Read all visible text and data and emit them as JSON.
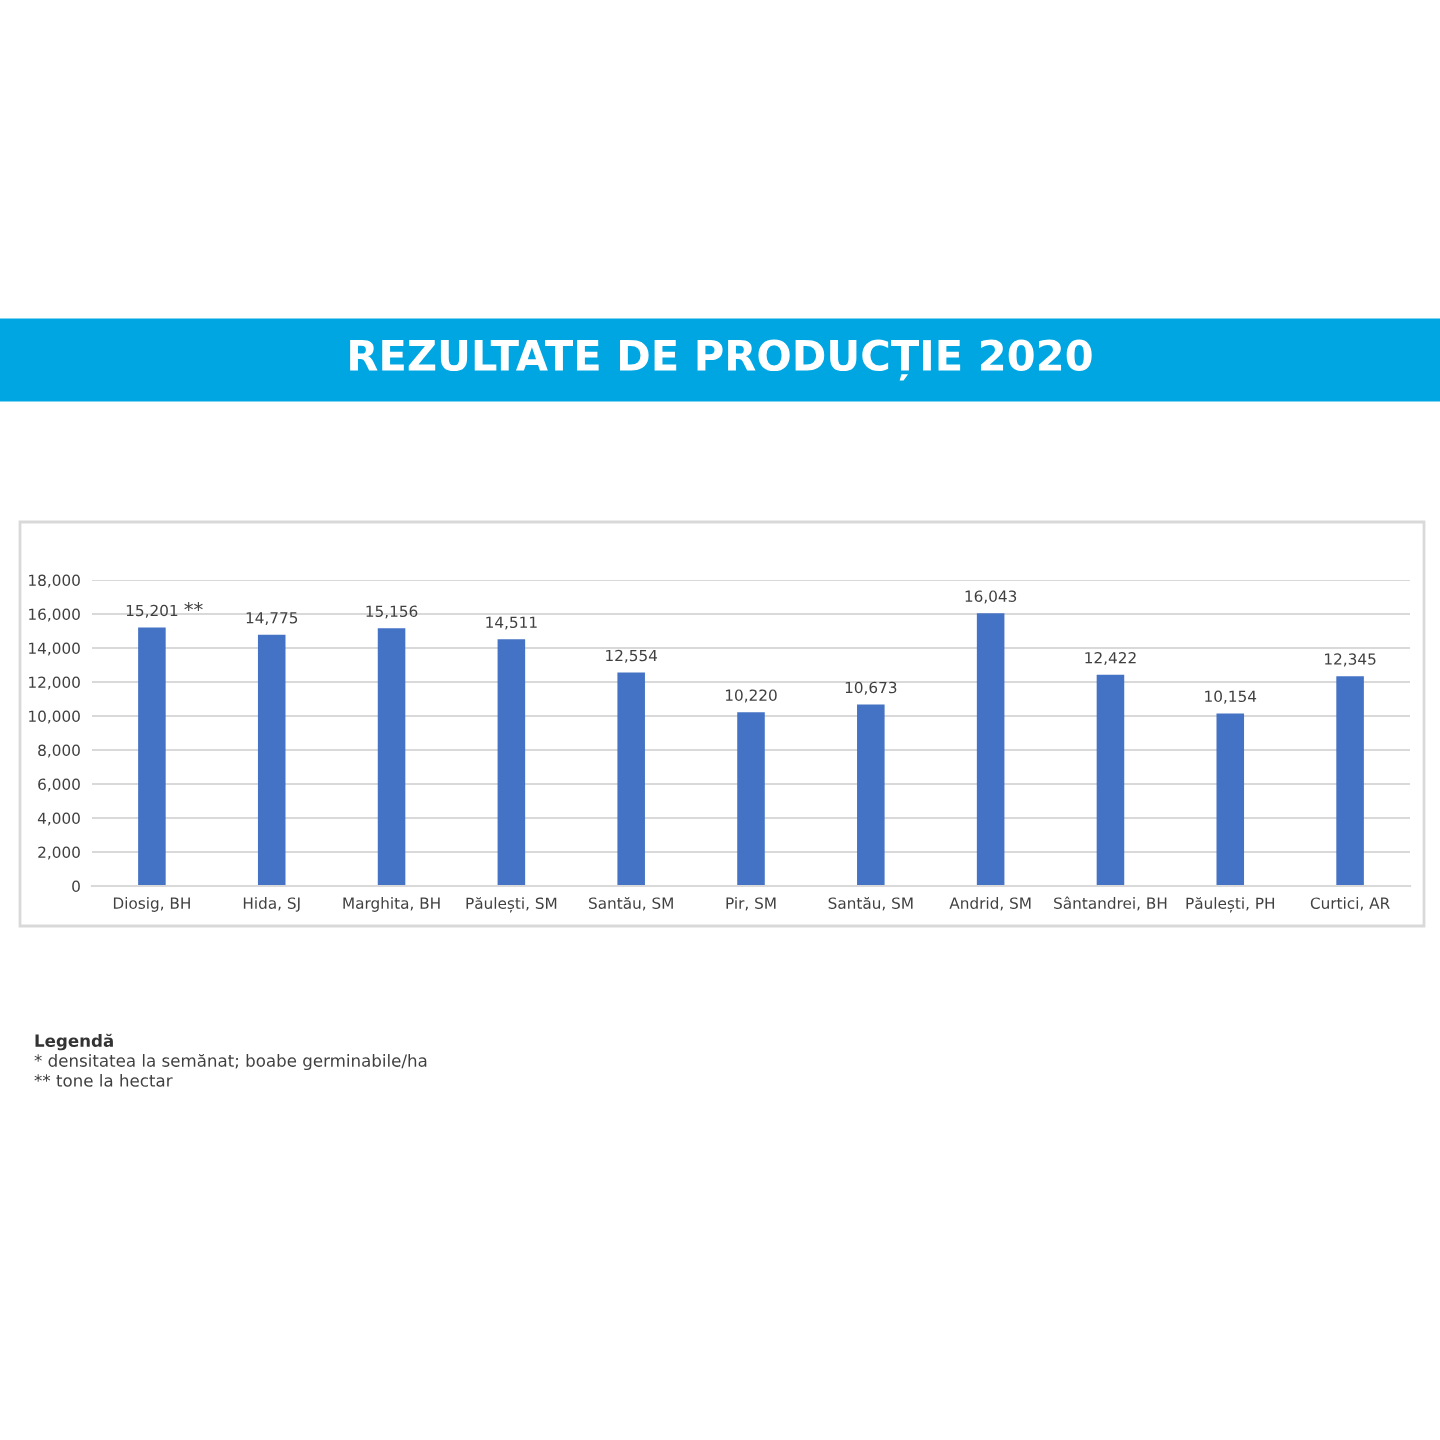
{
  "chart_data": {
    "type": "bar",
    "title": "REZULTATE DE PRODUCȚIE 2020",
    "categories": [
      "Diosig, BH",
      "Hida, SJ",
      "Marghita, BH",
      "Păulești, SM",
      "Santău, SM",
      "Pir, SM",
      "Santău, SM",
      "Andrid, SM",
      "Sântandrei, BH",
      "Păulești, PH",
      "Curtici, AR"
    ],
    "values": [
      15201,
      14775,
      15156,
      14511,
      12554,
      10220,
      10673,
      16043,
      12422,
      10154,
      12345
    ],
    "value_labels": [
      "15,201",
      "14,775",
      "15,156",
      "14,511",
      "12,554",
      "10,220",
      "10,673",
      "16,043",
      "12,422",
      "10,154",
      "12,345"
    ],
    "color": "#4472c4",
    "ylim": [
      0,
      18000
    ],
    "yticks": [
      {
        "value": 0,
        "label": "0"
      },
      {
        "value": 2000,
        "label": "2,000"
      },
      {
        "value": 4000,
        "label": "4,000"
      },
      {
        "value": 6000,
        "label": "6,000"
      },
      {
        "value": 8000,
        "label": "8,000"
      },
      {
        "value": 10000,
        "label": "10,000"
      },
      {
        "value": 12000,
        "label": "12,000"
      },
      {
        "value": 14000,
        "label": "14,000"
      },
      {
        "value": 16000,
        "label": "16,000"
      },
      {
        "value": 18000,
        "label": "18,000"
      }
    ],
    "grid": "y",
    "annotations": [
      {
        "text": "**",
        "x": "Diosig, BH",
        "y": 15201
      },
      "Legendă",
      "* densitatea la semănat; boabe germinabile/ha",
      "** tone la hectar"
    ]
  }
}
